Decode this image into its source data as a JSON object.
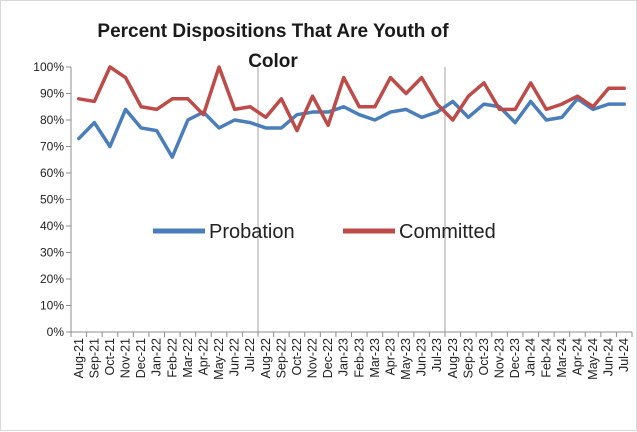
{
  "chart_data": {
    "type": "line",
    "title_line1": "Percent Dispositions That Are Youth of",
    "title_line2": "Color",
    "xlabel": "",
    "ylabel": "",
    "ylim": [
      0,
      100
    ],
    "yticks": [
      "0%",
      "10%",
      "20%",
      "30%",
      "40%",
      "50%",
      "60%",
      "70%",
      "80%",
      "90%",
      "100%"
    ],
    "categories": [
      "Aug-21",
      "Sep-21",
      "Oct-21",
      "Nov-21",
      "Dec-21",
      "Jan-22",
      "Feb-22",
      "Mar-22",
      "Apr-22",
      "May-22",
      "Jun-22",
      "Jul-22",
      "Aug-22",
      "Sep-22",
      "Oct-22",
      "Nov-22",
      "Dec-22",
      "Jan-23",
      "Feb-23",
      "Mar-23",
      "Apr-23",
      "May-23",
      "Jun-23",
      "Jul-23",
      "Aug-23",
      "Sep-23",
      "Oct-23",
      "Nov-23",
      "Dec-23",
      "Jan-24",
      "Feb-24",
      "Mar-24",
      "Apr-24",
      "May-24",
      "Jun-24",
      "Jul-24"
    ],
    "series": [
      {
        "name": "Probation",
        "color": "#4a7ebb",
        "values": [
          73,
          79,
          70,
          84,
          77,
          76,
          66,
          80,
          83,
          77,
          80,
          79,
          77,
          77,
          82,
          83,
          83,
          85,
          82,
          80,
          83,
          84,
          81,
          83,
          87,
          81,
          86,
          85,
          79,
          87,
          80,
          81,
          88,
          84,
          86,
          86
        ]
      },
      {
        "name": "Committed",
        "color": "#be4b48",
        "values": [
          88,
          87,
          100,
          96,
          85,
          84,
          88,
          88,
          82,
          100,
          84,
          85,
          81,
          88,
          76,
          89,
          78,
          96,
          85,
          85,
          96,
          90,
          96,
          86,
          80,
          89,
          94,
          84,
          84,
          94,
          84,
          86,
          89,
          85,
          92,
          92
        ]
      }
    ],
    "vertical_gridline_categories": [
      "Aug-22",
      "Aug-23"
    ],
    "legend_position": "center",
    "grid": false
  }
}
